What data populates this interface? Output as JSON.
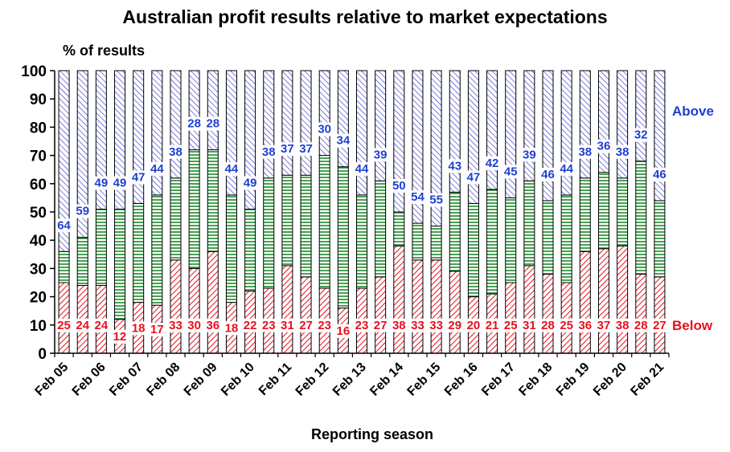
{
  "title": "Australian profit results relative to market expectations",
  "colors": {
    "below": "#e8101e",
    "inline": "#1a8a2a",
    "above": "#2228c8",
    "below_label": "#e8101e",
    "above_label": "#1f3fd0"
  },
  "chart_data": {
    "type": "bar",
    "stacked": true,
    "title": "Australian profit results relative to market expectations",
    "ylabel": "% of results",
    "xlabel": "Reporting season",
    "ylim": [
      0,
      100
    ],
    "yticks": [
      0,
      10,
      20,
      30,
      40,
      50,
      60,
      70,
      80,
      90,
      100
    ],
    "xtick_labels": [
      "Feb 05",
      "Feb 06",
      "Feb 07",
      "Feb 08",
      "Feb 09",
      "Feb 10",
      "Feb 11",
      "Feb 12",
      "Feb 13",
      "Feb 14",
      "Feb 15",
      "Feb 16",
      "Feb 17",
      "Feb 18",
      "Feb 19",
      "Feb 20",
      "Feb 21"
    ],
    "bar_count": 33,
    "series": [
      {
        "name": "Below",
        "values": [
          25,
          24,
          24,
          12,
          18,
          17,
          33,
          30,
          36,
          18,
          22,
          23,
          31,
          27,
          23,
          16,
          23,
          27,
          38,
          33,
          33,
          29,
          20,
          21,
          25,
          31,
          28,
          25,
          36,
          37,
          38,
          28,
          27
        ]
      },
      {
        "name": "",
        "values": [
          11,
          17,
          27,
          39,
          35,
          39,
          29,
          42,
          36,
          38,
          29,
          39,
          32,
          36,
          47,
          50,
          33,
          34,
          12,
          13,
          12,
          28,
          33,
          37,
          30,
          30,
          26,
          31,
          26,
          27,
          24,
          40,
          27
        ]
      },
      {
        "name": "Above",
        "values": [
          64,
          59,
          49,
          49,
          47,
          44,
          38,
          28,
          28,
          44,
          49,
          38,
          37,
          37,
          30,
          34,
          44,
          39,
          50,
          54,
          55,
          43,
          47,
          42,
          45,
          39,
          46,
          44,
          38,
          36,
          38,
          32,
          46
        ]
      }
    ],
    "legend_labels": [
      "Above",
      "Below"
    ],
    "grid": false
  }
}
